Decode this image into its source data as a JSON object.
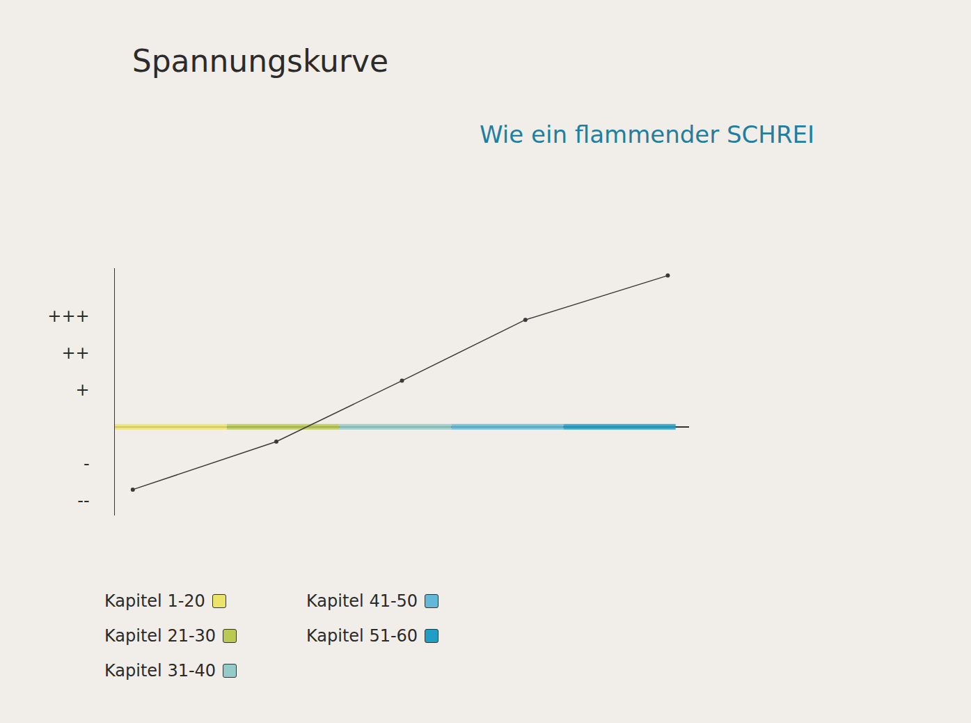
{
  "chart_data": {
    "type": "line",
    "title": "Spannungskurve",
    "subtitle": "Wie ein flammender SCHREI",
    "series": [
      {
        "color": "#3a3a3a",
        "marker": "circle",
        "x": [
          0.16,
          1.44,
          2.56,
          3.66,
          4.93
        ],
        "values": [
          -1.7,
          -0.4,
          1.25,
          2.9,
          4.1
        ]
      },
      {
        "name": "Kapitel 1-20",
        "color": "#ece36a",
        "x": [
          0,
          1
        ],
        "values": [
          0,
          0
        ]
      },
      {
        "name": "Kapitel 21-30",
        "color": "#b9c952",
        "x": [
          1,
          2
        ],
        "values": [
          0,
          0
        ]
      },
      {
        "name": "Kapitel 31-40",
        "color": "#94cbc8",
        "x": [
          2,
          3
        ],
        "values": [
          0,
          0
        ]
      },
      {
        "name": "Kapitel 41-50",
        "color": "#62b8d6",
        "x": [
          3,
          4
        ],
        "values": [
          0,
          0
        ]
      },
      {
        "name": "Kapitel 51-60",
        "color": "#1f9ec6",
        "x": [
          4,
          5
        ],
        "values": [
          0,
          0
        ]
      }
    ],
    "xlim": [
      0,
      5.12
    ],
    "ylim": [
      -2.4,
      4.3
    ],
    "yticks": [
      {
        "value": -2,
        "label": "--"
      },
      {
        "value": -1,
        "label": "-"
      },
      {
        "value": 1,
        "label": "+"
      },
      {
        "value": 2,
        "label": "++"
      },
      {
        "value": 3,
        "label": "+++"
      }
    ],
    "tick_labels": "y",
    "grid": false,
    "legend": "bottom"
  }
}
